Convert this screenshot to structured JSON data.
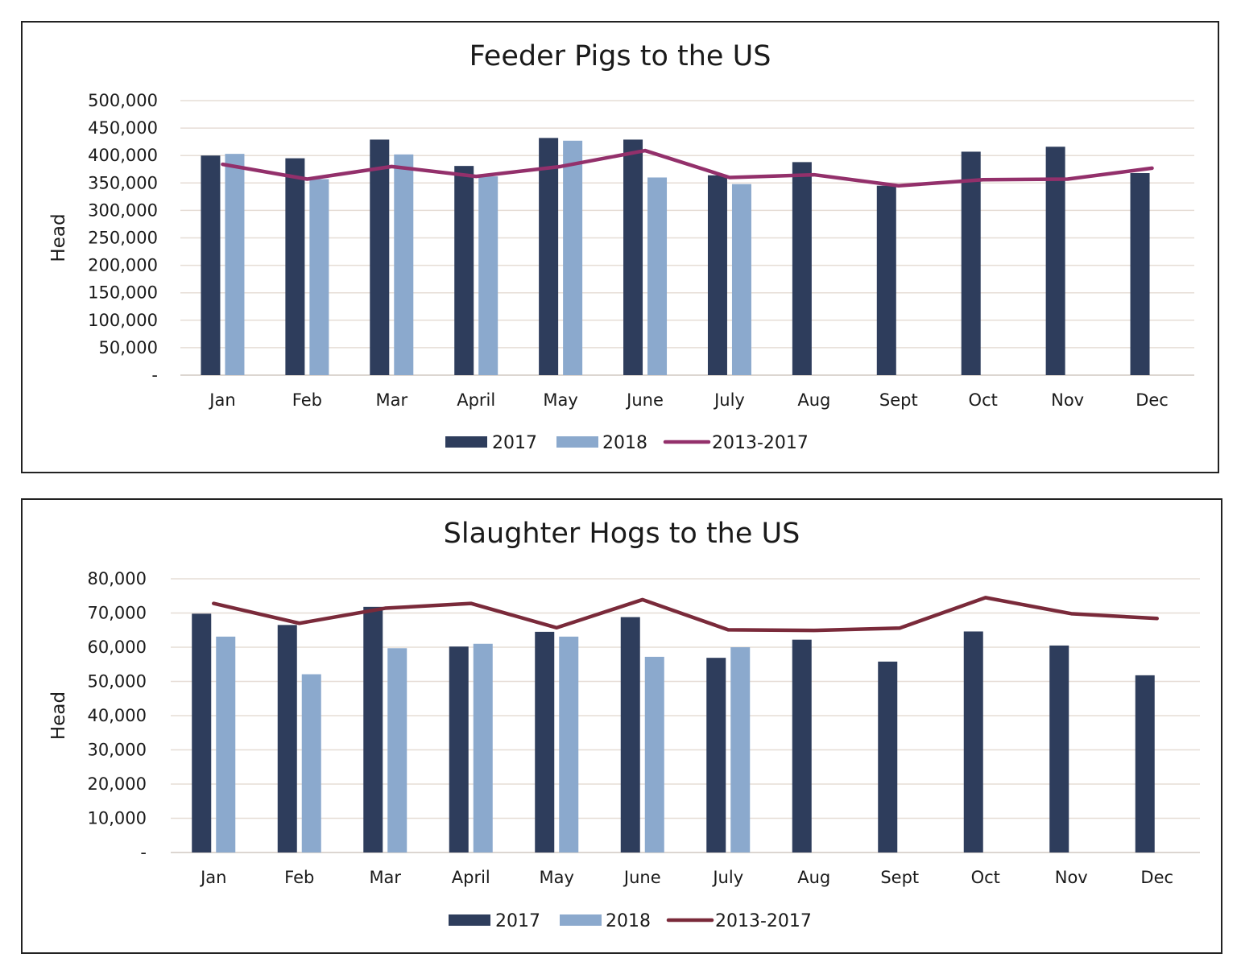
{
  "colors": {
    "bar_2017": "#2e3d5c",
    "bar_2018": "#8ba9cd",
    "gridline": "#e6ddd6",
    "line_feeder": "#93306b",
    "line_slaughter": "#7a2a3a"
  },
  "chart_data": [
    {
      "type": "bar",
      "title": "Feeder Pigs to the US",
      "xlabel": "",
      "ylabel": "Head",
      "ylim": [
        0,
        500000
      ],
      "yticks": [
        0,
        50000,
        100000,
        150000,
        200000,
        250000,
        300000,
        350000,
        400000,
        450000,
        500000
      ],
      "ytick_labels": [
        "-",
        "50,000",
        "100,000",
        "150,000",
        "200,000",
        "250,000",
        "300,000",
        "350,000",
        "400,000",
        "450,000",
        "500,000"
      ],
      "categories": [
        "Jan",
        "Feb",
        "Mar",
        "April",
        "May",
        "June",
        "July",
        "Aug",
        "Sept",
        "Oct",
        "Nov",
        "Dec"
      ],
      "series": [
        {
          "name": "2017",
          "type": "bar",
          "color": "#2e3d5c",
          "values": [
            400000,
            395000,
            429000,
            381000,
            432000,
            429000,
            364000,
            388000,
            345000,
            407000,
            416000,
            368000
          ]
        },
        {
          "name": "2018",
          "type": "bar",
          "color": "#8ba9cd",
          "values": [
            403000,
            357000,
            402000,
            362000,
            427000,
            360000,
            348000,
            null,
            null,
            null,
            null,
            null
          ]
        },
        {
          "name": "2013-2017",
          "type": "line",
          "color": "#93306b",
          "values": [
            384000,
            357000,
            380000,
            362000,
            380000,
            409000,
            360000,
            365000,
            345000,
            356000,
            357000,
            377000
          ]
        }
      ],
      "grid": true,
      "legend": "bottom"
    },
    {
      "type": "bar",
      "title": "Slaughter Hogs to the US",
      "xlabel": "",
      "ylabel": "Head",
      "ylim": [
        0,
        80000
      ],
      "yticks": [
        0,
        10000,
        20000,
        30000,
        40000,
        50000,
        60000,
        70000,
        80000
      ],
      "ytick_labels": [
        "-",
        "10,000",
        "20,000",
        "30,000",
        "40,000",
        "50,000",
        "60,000",
        "70,000",
        "80,000"
      ],
      "categories": [
        "Jan",
        "Feb",
        "Mar",
        "April",
        "May",
        "June",
        "July",
        "Aug",
        "Sept",
        "Oct",
        "Nov",
        "Dec"
      ],
      "series": [
        {
          "name": "2017",
          "type": "bar",
          "color": "#2e3d5c",
          "values": [
            69800,
            66500,
            71800,
            60200,
            64500,
            68800,
            56900,
            62200,
            55800,
            64600,
            60500,
            51800
          ]
        },
        {
          "name": "2018",
          "type": "bar",
          "color": "#8ba9cd",
          "values": [
            63100,
            52100,
            59700,
            61000,
            63100,
            57200,
            60000,
            null,
            null,
            null,
            null,
            null
          ]
        },
        {
          "name": "2013-2017",
          "type": "line",
          "color": "#7a2a3a",
          "values": [
            72800,
            67000,
            71400,
            72800,
            65700,
            73900,
            65100,
            64900,
            65600,
            74500,
            69800,
            68400
          ]
        }
      ],
      "grid": true,
      "legend": "bottom"
    }
  ]
}
